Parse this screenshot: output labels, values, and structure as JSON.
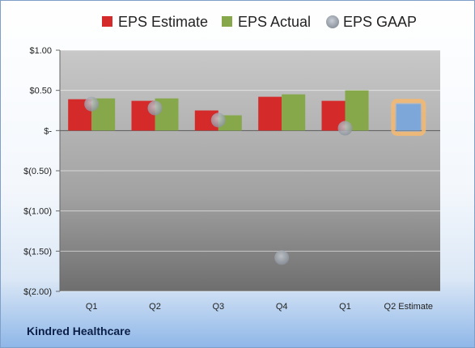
{
  "chart_data": {
    "type": "bar",
    "categories": [
      "Q1",
      "Q2",
      "Q3",
      "Q4",
      "Q1",
      "Q2 Estimate"
    ],
    "series": [
      {
        "name": "EPS Estimate",
        "values": [
          0.39,
          0.37,
          0.25,
          0.42,
          0.37,
          null
        ],
        "color": "#d42a2a"
      },
      {
        "name": "EPS Actual",
        "values": [
          0.4,
          0.4,
          0.19,
          0.45,
          0.5,
          null
        ],
        "color": "#86a84a"
      },
      {
        "name": "EPS GAAP",
        "type": "scatter",
        "values": [
          0.33,
          0.28,
          0.13,
          -1.58,
          0.03,
          null
        ],
        "color": "#b3bac4"
      }
    ],
    "highlight": {
      "category": "Q2 Estimate",
      "value": 0.33,
      "color": "#7da7d9",
      "glow": "#f5b870"
    },
    "yticks": [
      {
        "value": 1.0,
        "label": "$1.00"
      },
      {
        "value": 0.5,
        "label": "$0.50"
      },
      {
        "value": 0.0,
        "label": "$-"
      },
      {
        "value": -0.5,
        "label": "$(0.50)"
      },
      {
        "value": -1.0,
        "label": "$(1.00)"
      },
      {
        "value": -1.5,
        "label": "$(1.50)"
      },
      {
        "value": -2.0,
        "label": "$(2.00)"
      }
    ],
    "ylim": [
      -2.0,
      1.0
    ],
    "grid": true,
    "legend_position": "top",
    "company": "Kindred Healthcare"
  }
}
